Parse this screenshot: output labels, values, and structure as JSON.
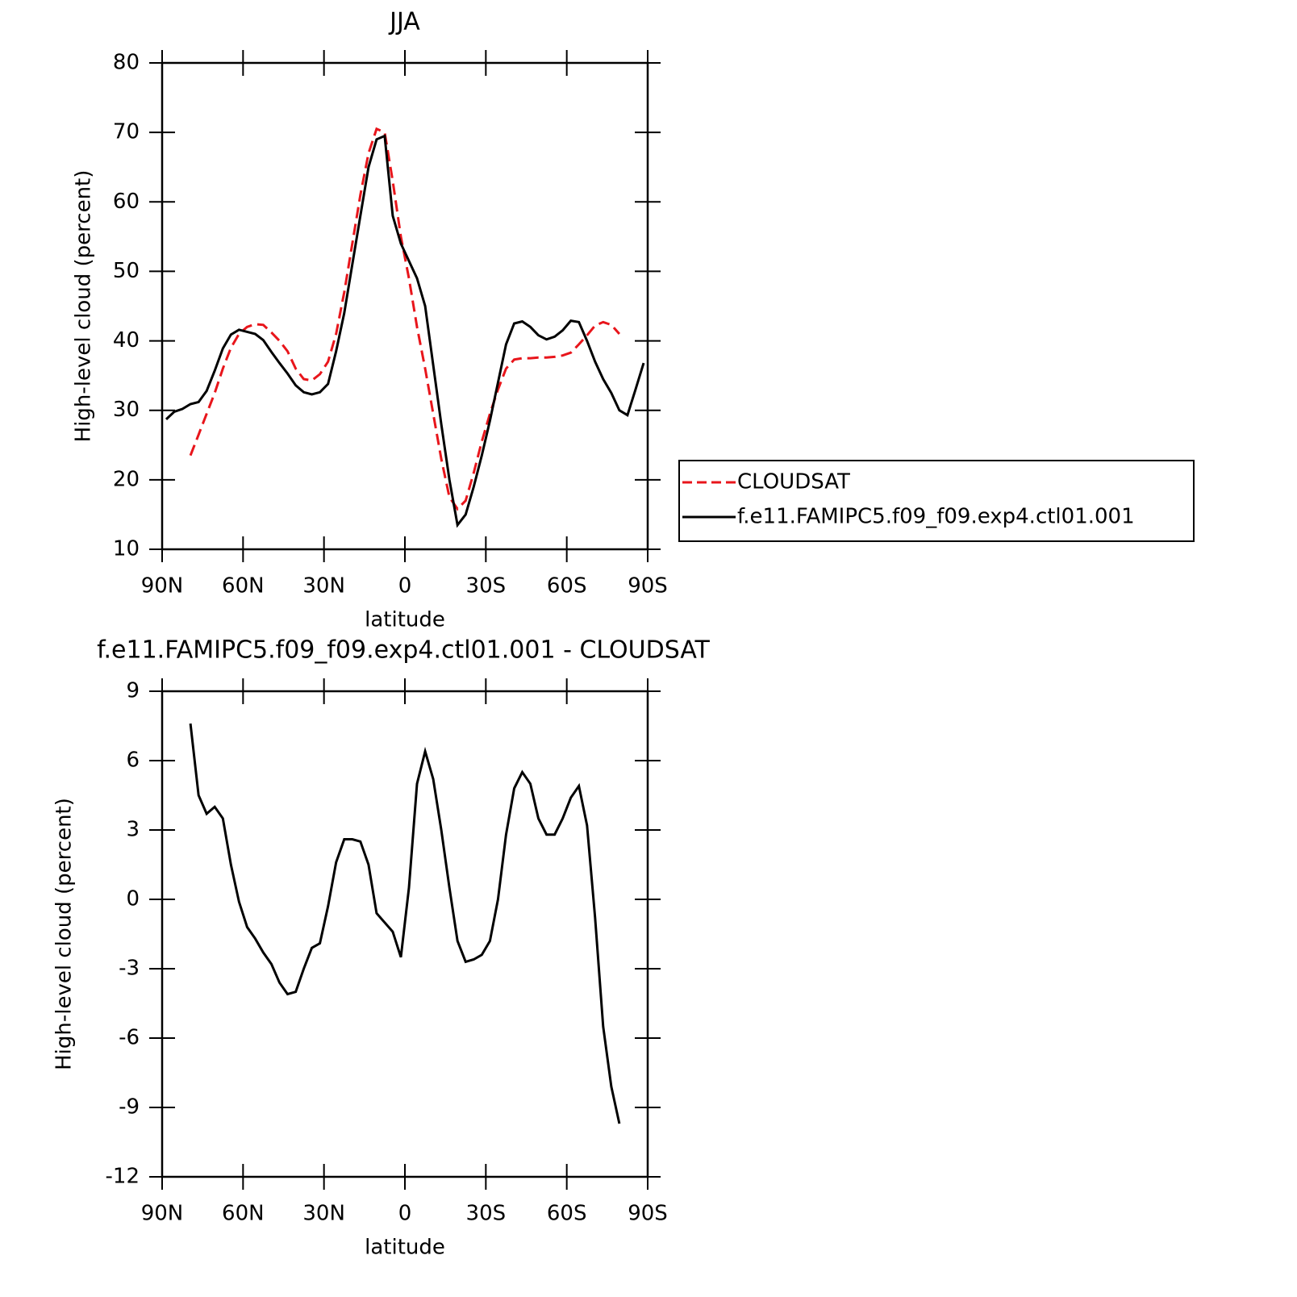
{
  "chart_data": [
    {
      "type": "line",
      "title": "JJA",
      "xlabel": "latitude",
      "ylabel": "High-level cloud (percent)",
      "x": [
        88.5,
        85.5,
        82.5,
        79.5,
        76.5,
        73.5,
        70.5,
        67.5,
        64.5,
        61.5,
        58.5,
        55.5,
        52.5,
        49.5,
        46.5,
        43.5,
        40.5,
        37.5,
        34.5,
        31.5,
        28.5,
        25.5,
        22.5,
        19.5,
        16.5,
        13.5,
        10.5,
        7.5,
        4.5,
        1.5,
        -1.5,
        -4.5,
        -7.5,
        -10.5,
        -13.5,
        -16.5,
        -19.5,
        -22.5,
        -25.5,
        -28.5,
        -31.5,
        -34.5,
        -37.5,
        -40.5,
        -43.5,
        -46.5,
        -49.5,
        -52.5,
        -55.5,
        -58.5,
        -61.5,
        -64.5,
        -67.5,
        -70.5,
        -73.5,
        -76.5,
        -79.5,
        -82.5,
        -85.5,
        -88.5
      ],
      "series": [
        {
          "name": "CLOUDSAT",
          "color": "#e8151b",
          "line_style": "dashed",
          "values": [
            null,
            null,
            null,
            23.5,
            26.5,
            29.5,
            32.5,
            36,
            39,
            41,
            42,
            42.4,
            42.3,
            41.2,
            40,
            38.5,
            36,
            34.5,
            34.3,
            35.2,
            37,
            41,
            47,
            54,
            61,
            67,
            70.5,
            70,
            63,
            55,
            49,
            42,
            36,
            29.5,
            23,
            17.5,
            15.8,
            17,
            21,
            25.5,
            29.5,
            33,
            36,
            37.3,
            37.5,
            37.5,
            37.6,
            37.6,
            37.7,
            37.9,
            38.3,
            39.5,
            40.8,
            42.2,
            42.7,
            42.3,
            41,
            null,
            null,
            null
          ]
        },
        {
          "name": "f.e11.FAMIPC5.f09_f09.exp4.ctl01.001",
          "color": "#000000",
          "line_style": "solid",
          "values": [
            28.7,
            29.8,
            30.2,
            30.9,
            31.2,
            32.8,
            35.7,
            38.9,
            40.9,
            41.6,
            41.3,
            41,
            40.1,
            38.4,
            36.8,
            35.3,
            33.6,
            32.6,
            32.3,
            32.6,
            33.8,
            38.5,
            44,
            51,
            58,
            65,
            69,
            69.5,
            58,
            54,
            51.5,
            49,
            45,
            36.5,
            28,
            20,
            13.5,
            15,
            19,
            23.5,
            28.5,
            34,
            39.5,
            42.5,
            42.8,
            42,
            40.8,
            40.2,
            40.6,
            41.5,
            42.9,
            42.7,
            40,
            37,
            34.5,
            32.5,
            30,
            29.3,
            33,
            36.8
          ]
        }
      ],
      "xlim": [
        90,
        -90
      ],
      "xticks": [
        {
          "value": 90,
          "label": "90N"
        },
        {
          "value": 60,
          "label": "60N"
        },
        {
          "value": 30,
          "label": "30N"
        },
        0,
        {
          "value": -30,
          "label": "30S"
        },
        {
          "value": -60,
          "label": "60S"
        },
        {
          "value": -90,
          "label": "90S"
        }
      ],
      "ylim": [
        10,
        80
      ],
      "yticks": [
        10,
        20,
        30,
        40,
        50,
        60,
        70,
        80
      ],
      "legend": "right"
    },
    {
      "type": "line",
      "title": "f.e11.FAMIPC5.f09_f09.exp4.ctl01.001 - CLOUDSAT",
      "xlabel": "latitude",
      "ylabel": "High-level cloud (percent)",
      "x": [
        88.5,
        85.5,
        82.5,
        79.5,
        76.5,
        73.5,
        70.5,
        67.5,
        64.5,
        61.5,
        58.5,
        55.5,
        52.5,
        49.5,
        46.5,
        43.5,
        40.5,
        37.5,
        34.5,
        31.5,
        28.5,
        25.5,
        22.5,
        19.5,
        16.5,
        13.5,
        10.5,
        7.5,
        4.5,
        1.5,
        -1.5,
        -4.5,
        -7.5,
        -10.5,
        -13.5,
        -16.5,
        -19.5,
        -22.5,
        -25.5,
        -28.5,
        -31.5,
        -34.5,
        -37.5,
        -40.5,
        -43.5,
        -46.5,
        -49.5,
        -52.5,
        -55.5,
        -58.5,
        -61.5,
        -64.5,
        -67.5,
        -70.5,
        -73.5,
        -76.5,
        -79.5,
        -82.5,
        -85.5,
        -88.5
      ],
      "series": [
        {
          "name": "difference",
          "color": "#000000",
          "line_style": "solid",
          "values": [
            null,
            null,
            null,
            7.6,
            4.5,
            3.7,
            4.0,
            3.5,
            1.5,
            -0.1,
            -1.2,
            -1.7,
            -2.3,
            -2.8,
            -3.6,
            -4.1,
            -4.0,
            -3.0,
            -2.1,
            -1.9,
            -0.3,
            1.6,
            2.6,
            2.6,
            2.5,
            1.5,
            -0.6,
            -1.0,
            -1.4,
            -2.5,
            0.5,
            5.0,
            6.4,
            5.2,
            3.0,
            0.5,
            -1.8,
            -2.7,
            -2.6,
            -2.4,
            -1.8,
            0.0,
            2.8,
            4.8,
            5.5,
            5.0,
            3.5,
            2.8,
            2.8,
            3.5,
            4.4,
            4.9,
            3.2,
            -0.8,
            -5.5,
            -8.1,
            -9.7,
            null,
            null,
            null
          ]
        }
      ],
      "xlim": [
        90,
        -90
      ],
      "xticks": [
        {
          "value": 90,
          "label": "90N"
        },
        {
          "value": 60,
          "label": "60N"
        },
        {
          "value": 30,
          "label": "30N"
        },
        0,
        {
          "value": -30,
          "label": "30S"
        },
        {
          "value": -60,
          "label": "60S"
        },
        {
          "value": -90,
          "label": "90S"
        }
      ],
      "ylim": [
        -12,
        9
      ],
      "yticks": [
        -12,
        -9,
        -6,
        -3,
        0,
        3,
        6,
        9
      ]
    }
  ]
}
